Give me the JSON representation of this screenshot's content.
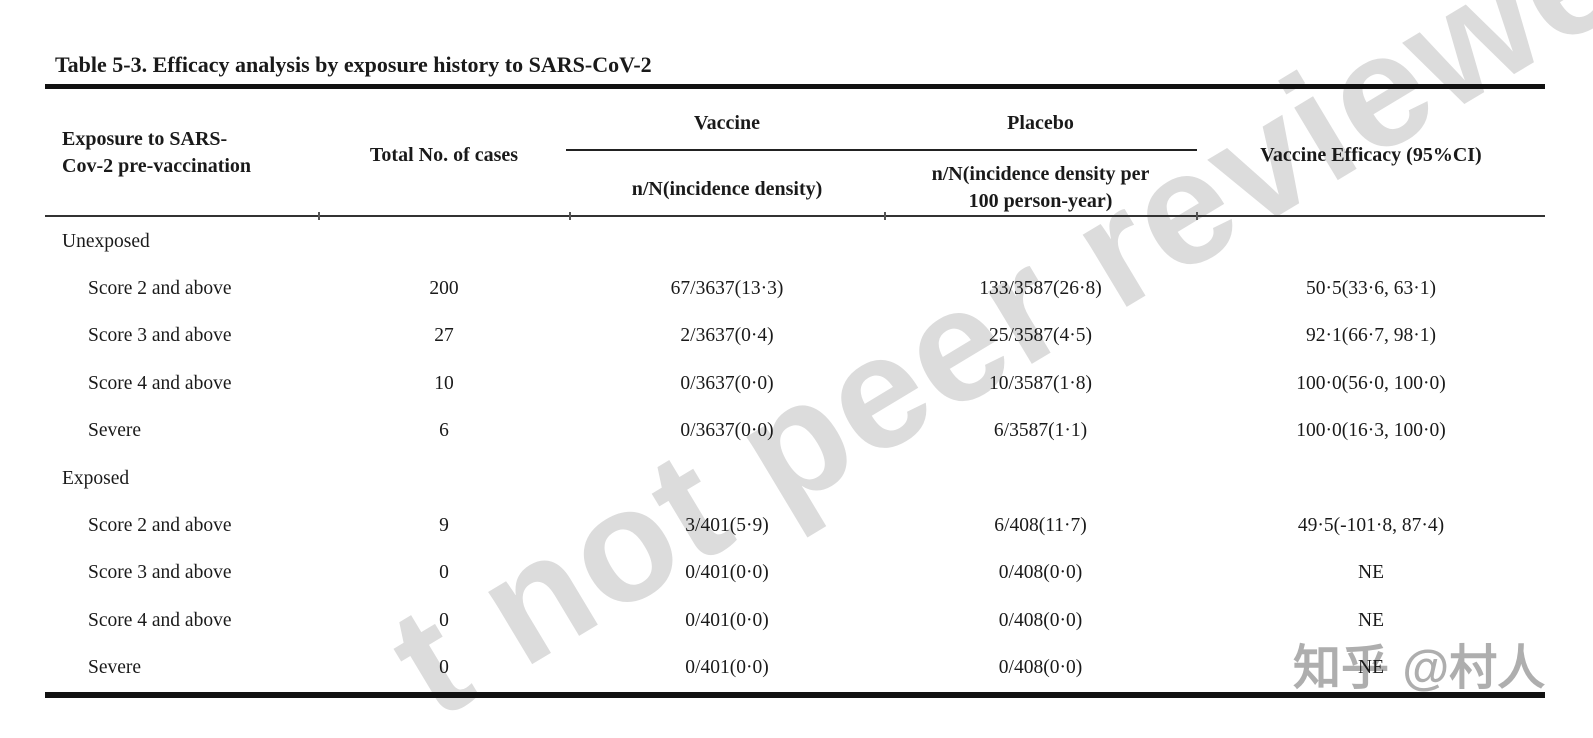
{
  "watermarks": {
    "diagonal": "t not peer reviewed",
    "diagonal_color": "#dcdcdc",
    "zhihu": "知乎 @村人",
    "zhihu_color": "#aeaeae"
  },
  "table": {
    "title": "Table 5-3. Efficacy analysis by exposure history to SARS-CoV-2",
    "header": {
      "exposure_line1": "Exposure to SARS-",
      "exposure_line2": "Cov-2 pre-vaccination",
      "total_cases": "Total No. of cases",
      "vaccine_group": "Vaccine",
      "vaccine_sub": "n/N(incidence density)",
      "placebo_group": "Placebo",
      "placebo_sub_line1": "n/N(incidence density per",
      "placebo_sub_line2": "100 person-year)",
      "efficacy": "Vaccine Efficacy (95%CI)"
    },
    "rows": [
      {
        "type": "group",
        "label": "Unexposed",
        "total": "",
        "vaccine": "",
        "placebo": "",
        "efficacy": ""
      },
      {
        "type": "data",
        "label": "Score 2 and above",
        "total": "200",
        "vaccine": "67/3637(13·3)",
        "placebo": "133/3587(26·8)",
        "efficacy": "50·5(33·6, 63·1)"
      },
      {
        "type": "data",
        "label": "Score 3 and above",
        "total": "27",
        "vaccine": "2/3637(0·4)",
        "placebo": "25/3587(4·5)",
        "efficacy": "92·1(66·7, 98·1)"
      },
      {
        "type": "data",
        "label": "Score 4 and above",
        "total": "10",
        "vaccine": "0/3637(0·0)",
        "placebo": "10/3587(1·8)",
        "efficacy": "100·0(56·0, 100·0)"
      },
      {
        "type": "data",
        "label": "Severe",
        "total": "6",
        "vaccine": "0/3637(0·0)",
        "placebo": "6/3587(1·1)",
        "efficacy": "100·0(16·3, 100·0)"
      },
      {
        "type": "group",
        "label": "Exposed",
        "total": "",
        "vaccine": "",
        "placebo": "",
        "efficacy": ""
      },
      {
        "type": "data",
        "label": "Score 2 and above",
        "total": "9",
        "vaccine": "3/401(5·9)",
        "placebo": "6/408(11·7)",
        "efficacy": "49·5(-101·8, 87·4)"
      },
      {
        "type": "data",
        "label": "Score 3 and above",
        "total": "0",
        "vaccine": "0/401(0·0)",
        "placebo": "0/408(0·0)",
        "efficacy": "NE"
      },
      {
        "type": "data",
        "label": "Score 4 and above",
        "total": "0",
        "vaccine": "0/401(0·0)",
        "placebo": "0/408(0·0)",
        "efficacy": "NE"
      },
      {
        "type": "data",
        "label": "Severe",
        "total": "0",
        "vaccine": "0/401(0·0)",
        "placebo": "0/408(0·0)",
        "efficacy": "NE"
      }
    ]
  }
}
